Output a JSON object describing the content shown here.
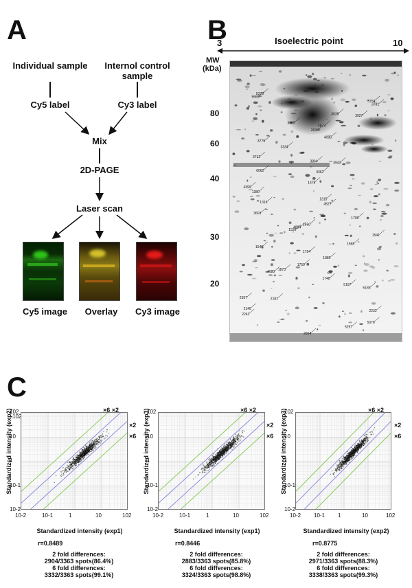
{
  "panel_a": {
    "letter": "A",
    "individual_sample": "Individual sample",
    "internal_control": "Internol control sample",
    "cy5_label": "Cy5 label",
    "cy3_label": "Cy3 label",
    "mix": "Mix",
    "page2d": "2D-PAGE",
    "laser_scan": "Laser scan",
    "images": [
      {
        "caption": "Cy5 image",
        "color": "#1a8a12"
      },
      {
        "caption": "Overlay",
        "color": "#9a8a1a"
      },
      {
        "caption": "Cy3 image",
        "color": "#b01010"
      }
    ]
  },
  "panel_b": {
    "letter": "B",
    "isoelectric_label": "Isoelectric point",
    "ph_min": "3",
    "ph_max": "10",
    "mw_label_1": "MW",
    "mw_label_2": "(kDa)",
    "mw_ticks": [
      "80",
      "60",
      "40",
      "30",
      "20"
    ],
    "spot_labels": [
      "5378",
      "5668",
      "3754",
      "3781",
      "3638",
      "3927",
      "3608",
      "4873",
      "2638",
      "4095",
      "3779",
      "3334",
      "3712",
      "3943",
      "3864",
      "6062",
      "4362",
      "1478",
      "4399",
      "1380",
      "1315",
      "1316",
      "4527",
      "3603",
      "1706",
      "1650",
      "4884",
      "1526",
      "1541",
      "1568",
      "1546",
      "1794",
      "1889",
      "1750",
      "1873",
      "4680",
      "1748",
      "5197",
      "5183",
      "2397",
      "2181",
      "2140",
      "2232",
      "2242",
      "5076",
      "5297",
      "2604"
    ]
  },
  "panel_c": {
    "letter": "C",
    "plots": [
      {
        "ylabel": "Standardized intensity (exp2)",
        "xlabel": "Standardized intensity (exp1)",
        "r": "r=0.8489",
        "two_fold_title": "2 fold differences:",
        "two_fold_value": "2904/3363 spots(86.4%)",
        "six_fold_title": "6 fold differences:",
        "six_fold_value": "3332/3363 spots(99.1%)"
      },
      {
        "ylabel": "Standardized intensity (exp3)",
        "xlabel": "Standardized intensity (exp1)",
        "r": "r=0.8446",
        "two_fold_title": "2 fold differences:",
        "two_fold_value": "2883/3363 spots(85.8%)",
        "six_fold_title": "6 fold differences:",
        "six_fold_value": "3324/3363 spots(98.8%)"
      },
      {
        "ylabel": "Standardized intensity (exp3)",
        "xlabel": "Standardized intensity (exp2)",
        "r": "r=0.8775",
        "two_fold_title": "2 fold differences:",
        "two_fold_value": "2971/3363 spots(88.3%)",
        "six_fold_title": "6 fold differences:",
        "six_fold_value": "3338/3363 spots(99.3%)"
      }
    ],
    "fold_labels": {
      "top": "×6 ×2",
      "mid": "×2",
      "low": "×6"
    },
    "x_ticks": [
      "10-2",
      "10-1",
      "1",
      "10",
      "102"
    ],
    "y_ticks": [
      "102",
      "10",
      "1",
      "10-1",
      "10-2"
    ],
    "colors": {
      "two_fold_line": "#8a8ae0",
      "six_fold_line": "#8ccc5a"
    }
  },
  "chart_data": [
    {
      "type": "scatter",
      "xlabel": "Standardized intensity (exp1)",
      "ylabel": "Standardized intensity (exp2)",
      "xlim": [
        0.01,
        100
      ],
      "ylim": [
        0.01,
        100
      ],
      "log_scale": true,
      "r": 0.8489,
      "n_spots": 3363
    },
    {
      "type": "scatter",
      "xlabel": "Standardized intensity (exp1)",
      "ylabel": "Standardized intensity (exp3)",
      "xlim": [
        0.01,
        100
      ],
      "ylim": [
        0.01,
        100
      ],
      "log_scale": true,
      "r": 0.8446,
      "n_spots": 3363
    },
    {
      "type": "scatter",
      "xlabel": "Standardized intensity (exp2)",
      "ylabel": "Standardized intensity (exp3)",
      "xlim": [
        0.01,
        100
      ],
      "ylim": [
        0.01,
        100
      ],
      "log_scale": true,
      "r": 0.8775,
      "n_spots": 3363
    }
  ]
}
